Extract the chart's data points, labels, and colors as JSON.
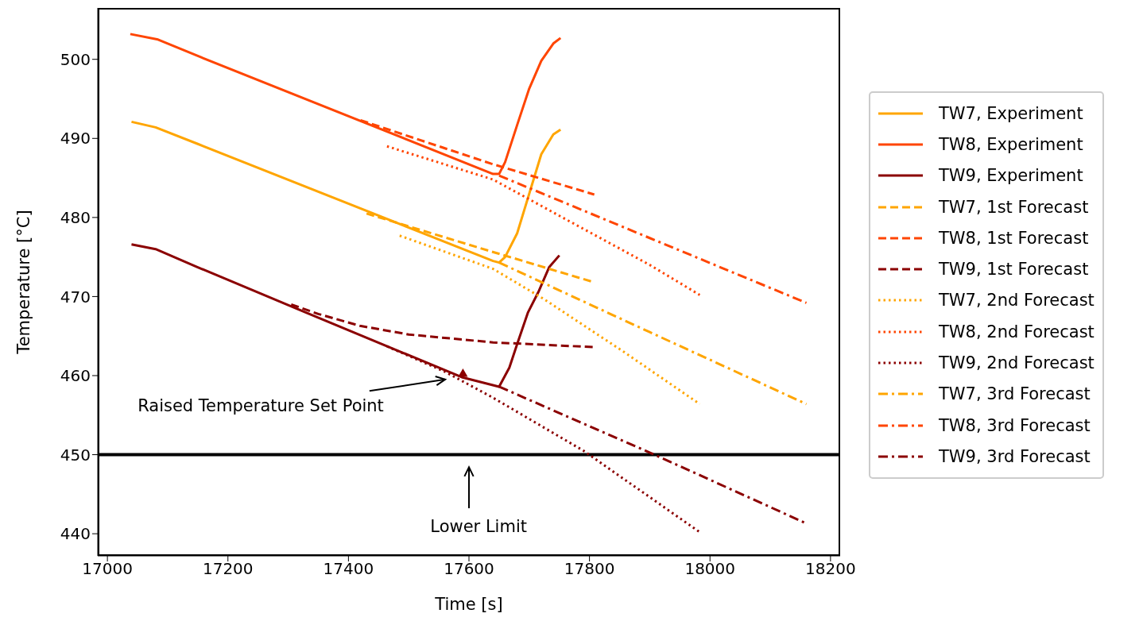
{
  "chart_data": {
    "type": "line",
    "xlabel": "Time [s]",
    "ylabel": "Temperature [°C]",
    "xlim": [
      16984,
      18216
    ],
    "xticks": [
      17000,
      17200,
      17400,
      17600,
      17800,
      18000,
      18200
    ],
    "ylim": [
      437.2,
      506.5
    ],
    "yticks": [
      440,
      450,
      460,
      470,
      480,
      490,
      500
    ],
    "legend": "right",
    "marker": "none",
    "ref_lines": [
      {
        "axis": "y",
        "value": 450,
        "color": "#000000"
      }
    ],
    "annotations": [
      "Raised Temperature Set Point",
      "Lower Limit"
    ],
    "series": [
      {
        "name": "TW7, Experiment",
        "color": "#ffa500",
        "line_style": "solid",
        "x": [
          17040,
          17080,
          17150,
          17640,
          17650,
          17660,
          17680,
          17700,
          17720,
          17740,
          17752
        ],
        "values": [
          492.1,
          491.4,
          489.3,
          474.5,
          474.3,
          475,
          478,
          483,
          488,
          490.5,
          491.1
        ]
      },
      {
        "name": "TW8, Experiment",
        "color": "#ff4500",
        "line_style": "solid",
        "x": [
          17038,
          17084,
          17154,
          17640,
          17650,
          17660,
          17680,
          17700,
          17720,
          17740,
          17752
        ],
        "values": [
          503.2,
          502.5,
          500.3,
          485.5,
          485.5,
          487,
          491.7,
          496.3,
          499.8,
          502,
          502.7
        ]
      },
      {
        "name": "TW9, Experiment",
        "color": "#8b0000",
        "line_style": "solid",
        "x": [
          17040,
          17080,
          17150,
          17332,
          17588,
          17650,
          17667,
          17680,
          17698,
          17716,
          17733,
          17750
        ],
        "values": [
          476.6,
          476,
          473.7,
          467.9,
          459.8,
          458.6,
          461,
          464,
          468,
          470.7,
          473.7,
          475.2
        ]
      },
      {
        "name": "TW7, 1st Forecast",
        "color": "#ffa500",
        "line_style": "dashed",
        "x": [
          17430,
          17637,
          17808
        ],
        "values": [
          480.5,
          475.7,
          471.8
        ]
      },
      {
        "name": "TW8, 1st Forecast",
        "color": "#ff4500",
        "line_style": "dashed",
        "x": [
          17420,
          17637,
          17808
        ],
        "values": [
          492.3,
          486.8,
          482.9
        ]
      },
      {
        "name": "TW9, 1st Forecast",
        "color": "#8b0000",
        "line_style": "dashed",
        "x": [
          17305,
          17350,
          17419,
          17500,
          17640,
          17808
        ],
        "values": [
          469,
          467.8,
          466.3,
          465.2,
          464.2,
          463.6
        ]
      },
      {
        "name": "TW7, 2nd Forecast",
        "color": "#ffa500",
        "line_style": "dotted",
        "x": [
          17485,
          17640,
          17724,
          17857,
          17983
        ],
        "values": [
          477.7,
          473.5,
          469.7,
          463,
          456.4
        ]
      },
      {
        "name": "TW8, 2nd Forecast",
        "color": "#ff4500",
        "line_style": "dotted",
        "x": [
          17464,
          17640,
          17760,
          17900,
          17983
        ],
        "values": [
          489,
          484.8,
          479.8,
          474,
          470.2
        ]
      },
      {
        "name": "TW9, 2nd Forecast",
        "color": "#8b0000",
        "line_style": "dotted",
        "x": [
          17464,
          17560,
          17640,
          17790,
          17983
        ],
        "values": [
          463.7,
          460.5,
          457.2,
          450.5,
          440.2
        ]
      },
      {
        "name": "TW7, 3rd Forecast",
        "color": "#ffa500",
        "line_style": "dashdot",
        "x": [
          17650,
          17900,
          18160
        ],
        "values": [
          474.3,
          465.5,
          456.4
        ]
      },
      {
        "name": "TW8, 3rd Forecast",
        "color": "#ff4500",
        "line_style": "dashdot",
        "x": [
          17650,
          17900,
          18160
        ],
        "values": [
          485.3,
          477.4,
          469.2
        ]
      },
      {
        "name": "TW9, 3rd Forecast",
        "color": "#8b0000",
        "line_style": "dashdot",
        "x": [
          17650,
          17902,
          18160
        ],
        "values": [
          458.6,
          450.2,
          441.3
        ]
      },
      {
        "type": "scatter",
        "color": "#8b0000",
        "marker": "triangle",
        "x": [
          17590
        ],
        "values": [
          460.2
        ]
      }
    ]
  }
}
